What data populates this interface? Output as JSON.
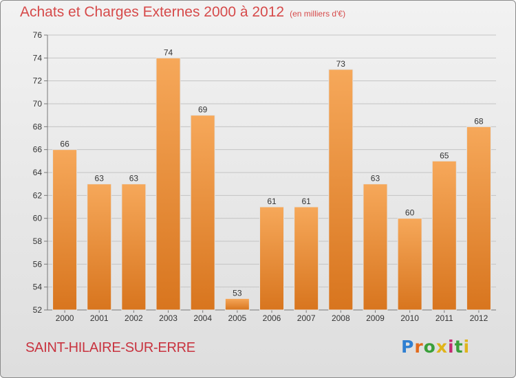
{
  "header": {
    "title": "Achats et Charges Externes 2000 à 2012",
    "unit": "(en milliers d'€)"
  },
  "footer": {
    "commune": "SAINT-HILAIRE-SUR-ERRE",
    "logo_text": "Proxiti"
  },
  "colors": {
    "bar_top": "#f6a85a",
    "bar_bottom": "#d8751e",
    "title": "#d64a4a",
    "commune": "#c8333f"
  },
  "chart_data": {
    "type": "bar",
    "title": "Achats et Charges Externes 2000 à 2012",
    "subtitle": "(en milliers d'€)",
    "xlabel": "",
    "ylabel": "",
    "categories": [
      "2000",
      "2001",
      "2002",
      "2003",
      "2004",
      "2005",
      "2006",
      "2007",
      "2008",
      "2009",
      "2010",
      "2011",
      "2012"
    ],
    "values": [
      66,
      63,
      63,
      74,
      69,
      53,
      61,
      61,
      73,
      63,
      60,
      65,
      68
    ],
    "ylim": [
      52,
      76
    ],
    "yticks": [
      52,
      54,
      56,
      58,
      60,
      62,
      64,
      66,
      68,
      70,
      72,
      74,
      76
    ],
    "grid": true,
    "data_labels": true,
    "legend": "none"
  }
}
